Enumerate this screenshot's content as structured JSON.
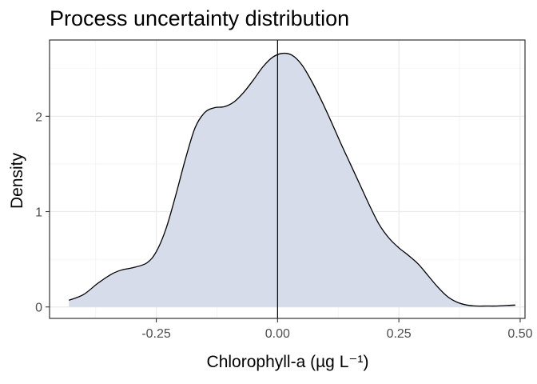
{
  "chart_data": {
    "type": "area",
    "title": "Process uncertainty distribution",
    "xlabel": "Chlorophyll-a (µg L⁻¹)",
    "ylabel": "Density",
    "xlim": [
      -0.47,
      0.51
    ],
    "ylim": [
      -0.12,
      2.8
    ],
    "x_ticks": [
      -0.25,
      0.0,
      0.25,
      0.5
    ],
    "x_tick_labels": [
      "-0.25",
      "0.00",
      "0.25",
      "0.50"
    ],
    "y_ticks": [
      0,
      1,
      2
    ],
    "y_tick_labels": [
      "0",
      "1",
      "2"
    ],
    "grid": true,
    "vline_x": 0.0,
    "fill_color": "#d7dcea",
    "line_color": "#000000",
    "series": [
      {
        "x": [
          -0.43,
          -0.4,
          -0.37,
          -0.34,
          -0.32,
          -0.3,
          -0.27,
          -0.25,
          -0.23,
          -0.21,
          -0.19,
          -0.17,
          -0.15,
          -0.13,
          -0.11,
          -0.09,
          -0.07,
          -0.05,
          -0.03,
          -0.01,
          0.01,
          0.03,
          0.05,
          0.07,
          0.09,
          0.11,
          0.13,
          0.15,
          0.17,
          0.19,
          0.21,
          0.23,
          0.25,
          0.27,
          0.29,
          0.31,
          0.33,
          0.35,
          0.37,
          0.39,
          0.41,
          0.43,
          0.45,
          0.47,
          0.49
        ],
        "y": [
          0.07,
          0.13,
          0.25,
          0.35,
          0.39,
          0.41,
          0.46,
          0.58,
          0.82,
          1.17,
          1.55,
          1.88,
          2.04,
          2.09,
          2.1,
          2.15,
          2.25,
          2.38,
          2.52,
          2.62,
          2.66,
          2.64,
          2.54,
          2.37,
          2.17,
          1.95,
          1.72,
          1.5,
          1.28,
          1.06,
          0.86,
          0.72,
          0.62,
          0.54,
          0.45,
          0.33,
          0.21,
          0.11,
          0.05,
          0.02,
          0.01,
          0.01,
          0.01,
          0.015,
          0.02
        ]
      }
    ]
  }
}
